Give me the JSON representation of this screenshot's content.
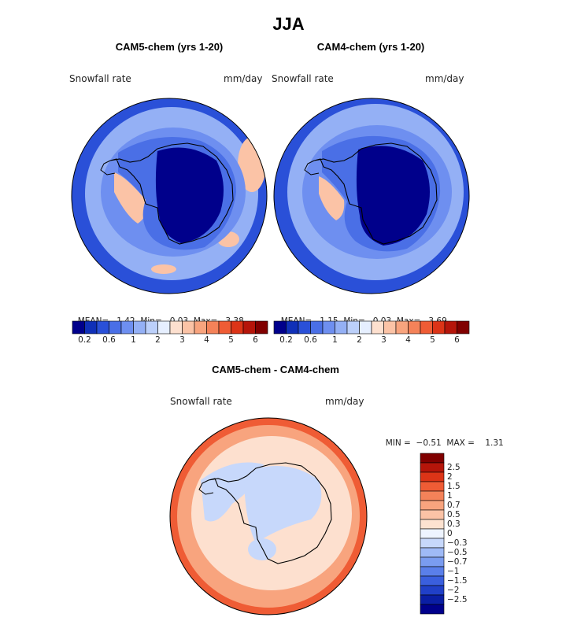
{
  "title": "JJA",
  "panels": [
    {
      "title": "CAM5-chem (yrs 1-20)",
      "variable": "Snowfall rate",
      "units": "mm/day",
      "stats": {
        "mean_label": "MEAN=",
        "mean": "1.42",
        "min_label": "Min=",
        "min": "0.03",
        "max_label": "Max=",
        "max": "3.38"
      }
    },
    {
      "title": "CAM4-chem (yrs 1-20)",
      "variable": "Snowfall rate",
      "units": "mm/day",
      "stats": {
        "mean_label": "MEAN=",
        "mean": "1.15",
        "min_label": "Min=",
        "min": "0.03",
        "max_label": "Max=",
        "max": "3.69"
      }
    }
  ],
  "abs_colorbar": {
    "colors": [
      "#00008b",
      "#1030b8",
      "#2a50d8",
      "#4a6fe6",
      "#6e8ff0",
      "#94b0f5",
      "#bcd0fa",
      "#e6efff",
      "#fde0cf",
      "#fbc3a6",
      "#f8a47e",
      "#f48259",
      "#ef5c35",
      "#dc3417",
      "#b5150a",
      "#800000"
    ],
    "labels": [
      "0.2",
      "0.6",
      "1",
      "2",
      "3",
      "4",
      "5",
      "6"
    ]
  },
  "diff_panel": {
    "title": "CAM5-chem - CAM4-chem",
    "variable": "Snowfall rate",
    "units": "mm/day",
    "stats": {
      "min_label": "MIN =",
      "min": "−0.51",
      "max_label": "MAX =",
      "max": "1.31"
    }
  },
  "diff_colorbar": {
    "colors": [
      "#800000",
      "#b5150a",
      "#dc3417",
      "#ef5c35",
      "#f48259",
      "#f8a47e",
      "#fbc3a6",
      "#fde2d0",
      "#eef4ff",
      "#c7d8fb",
      "#9fbaf6",
      "#7a9cf0",
      "#5a7fea",
      "#3a5fde",
      "#2040c8",
      "#0a1ea4",
      "#00008b"
    ],
    "labels": [
      "2.5",
      "2",
      "1.5",
      "1",
      "0.7",
      "0.5",
      "0.3",
      "0",
      "−0.3",
      "−0.5",
      "−0.7",
      "−1",
      "−1.5",
      "−2",
      "−2.5"
    ]
  },
  "map_colors": {
    "rim": "#2a50d8",
    "ocean": "#94b0f5",
    "sea_ice": "#6e8ff0",
    "coast": "#4a6fe6",
    "plateau": "#00008b",
    "warm": "#fbc3a6",
    "diff_rim": "#ef5c35",
    "diff_band": "#f8a47e",
    "diff_base": "#fde0cf",
    "diff_neg": "#c7d8fb"
  }
}
